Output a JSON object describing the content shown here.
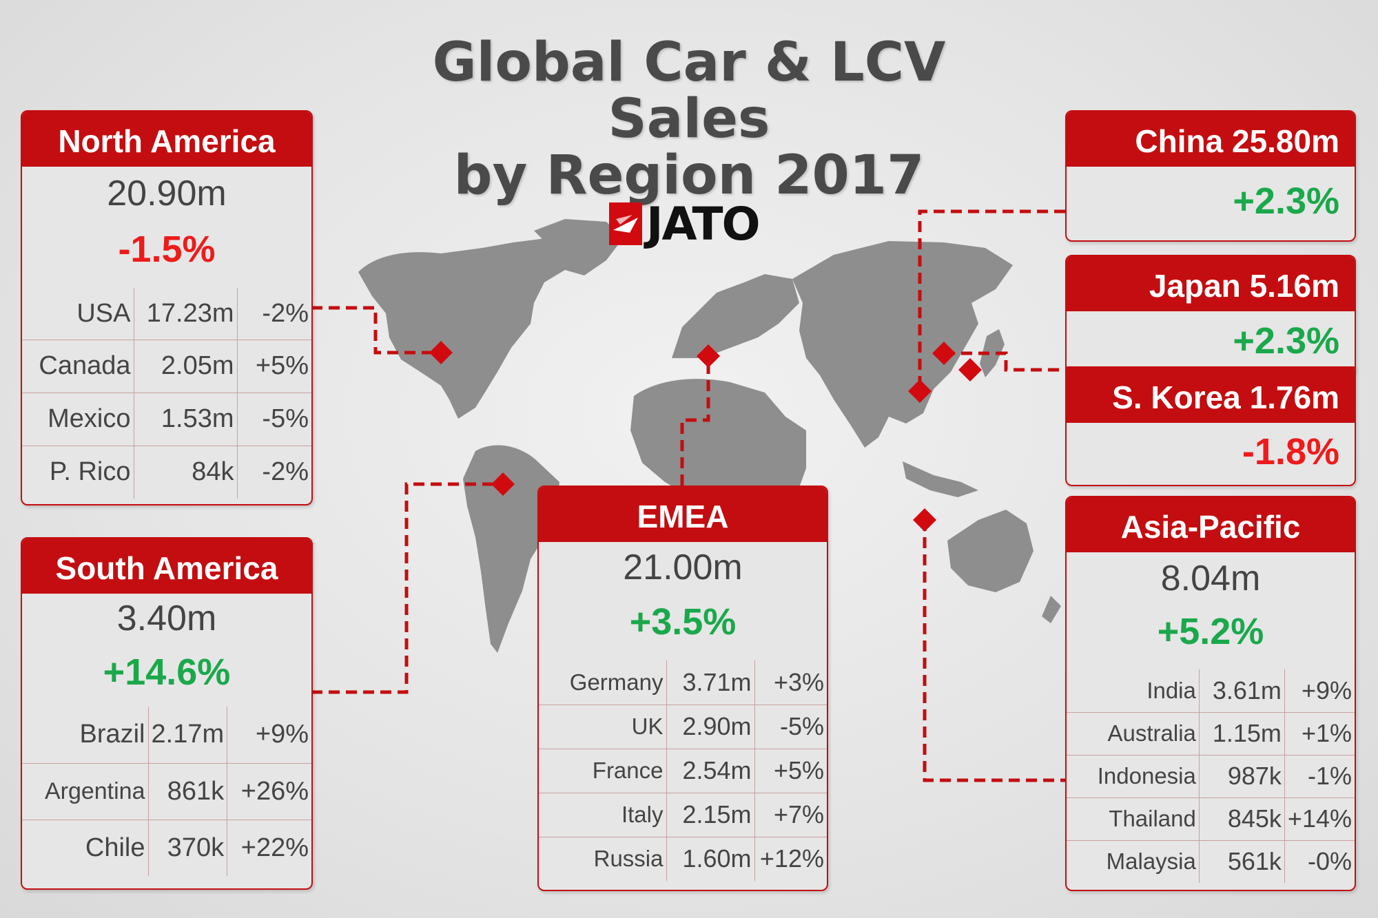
{
  "title_line1": "Global Car & LCV Sales",
  "title_line2": "by Region 2017",
  "logo_text": "JATO",
  "colors": {
    "red": "#c40d10",
    "positive": "#1aa84b",
    "negative": "#ee1b1b",
    "map": "#8c8c8c"
  },
  "chart_data": {
    "type": "table",
    "regions": [
      {
        "key": "north_america",
        "name": "North America",
        "total": "20.90m",
        "change": "-1.5%",
        "countries": [
          {
            "name": "USA",
            "sales": "17.23m",
            "change": "-2%"
          },
          {
            "name": "Canada",
            "sales": "2.05m",
            "change": "+5%"
          },
          {
            "name": "Mexico",
            "sales": "1.53m",
            "change": "-5%"
          },
          {
            "name": "P. Rico",
            "sales": "84k",
            "change": "-2%"
          }
        ]
      },
      {
        "key": "south_america",
        "name": "South America",
        "total": "3.40m",
        "change": "+14.6%",
        "countries": [
          {
            "name": "Brazil",
            "sales": "2.17m",
            "change": "+9%"
          },
          {
            "name": "Argentina",
            "sales": "861k",
            "change": "+26%"
          },
          {
            "name": "Chile",
            "sales": "370k",
            "change": "+22%"
          }
        ]
      },
      {
        "key": "emea",
        "name": "EMEA",
        "total": "21.00m",
        "change": "+3.5%",
        "countries": [
          {
            "name": "Germany",
            "sales": "3.71m",
            "change": "+3%"
          },
          {
            "name": "UK",
            "sales": "2.90m",
            "change": "-5%"
          },
          {
            "name": "France",
            "sales": "2.54m",
            "change": "+5%"
          },
          {
            "name": "Italy",
            "sales": "2.15m",
            "change": "+7%"
          },
          {
            "name": "Russia",
            "sales": "1.60m",
            "change": "+12%"
          }
        ]
      },
      {
        "key": "china",
        "name": "China",
        "total": "25.80m",
        "change": "+2.3%",
        "countries": []
      },
      {
        "key": "japan",
        "name": "Japan",
        "total": "5.16m",
        "change": "+2.3%",
        "countries": []
      },
      {
        "key": "s_korea",
        "name": "S. Korea",
        "total": "1.76m",
        "change": "-1.8%",
        "countries": []
      },
      {
        "key": "asia_pacific",
        "name": "Asia-Pacific",
        "total": "8.04m",
        "change": "+5.2%",
        "countries": [
          {
            "name": "India",
            "sales": "3.61m",
            "change": "+9%"
          },
          {
            "name": "Australia",
            "sales": "1.15m",
            "change": "+1%"
          },
          {
            "name": "Indonesia",
            "sales": "987k",
            "change": "-1%"
          },
          {
            "name": "Thailand",
            "sales": "845k",
            "change": "+14%"
          },
          {
            "name": "Malaysia",
            "sales": "561k",
            "change": "-0%"
          }
        ]
      }
    ]
  }
}
